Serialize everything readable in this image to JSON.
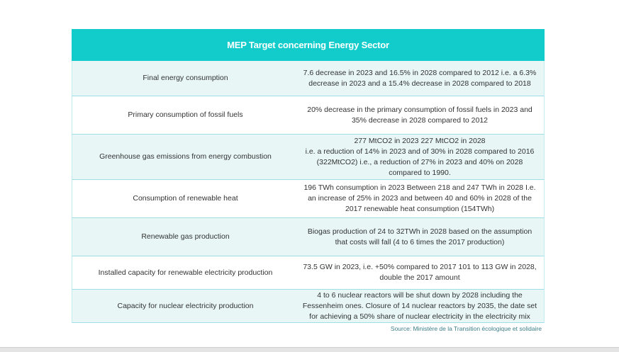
{
  "table": {
    "title": "MEP Target concerning Energy Sector",
    "rows": [
      {
        "label": "Final energy consumption",
        "value_lines": [
          "7.6 decrease in 2023 and 16.5% in 2028 compared to 2012 i.e. a 6.3%",
          "decrease in 2023 and a 15.4% decrease in 2028 compared to 2018"
        ]
      },
      {
        "label": "Primary consumption of fossil fuels",
        "value_lines": [
          "20% decrease in the primary consumption of fossil fuels in 2023 and",
          "35% decrease in 2028 compared to 2012"
        ]
      },
      {
        "label": "Greenhouse gas emissions from energy combustion",
        "value_lines": [
          "277 MtCO2 in 2023 227 MtCO2 in 2028",
          "i.e. a reduction of 14% in 2023 and of 30% in 2028 compared to 2016",
          "(322MtCO2) i.e., a reduction of 27% in 2023 and 40% on 2028",
          "compared to 1990."
        ]
      },
      {
        "label": "Consumption of renewable heat",
        "value_lines": [
          "196 TWh consumption in 2023 Between 218 and 247 TWh in 2028 I.e.",
          "an increase of 25% in 2023 and between 40 and 60% in 2028 of the",
          "2017 renewable heat consumption (154TWh)"
        ]
      },
      {
        "label": "Renewable gas production",
        "value_lines": [
          "Biogas production of 24 to 32TWh in 2028 based on the assumption",
          "that costs will fall (4 to 6 times the 2017 production)"
        ]
      },
      {
        "label": "Installed capacity for renewable electricity production",
        "value_lines": [
          "73.5 GW in 2023, i.e. +50% compared to 2017 101 to 113 GW in 2028,",
          "double the 2017 amount"
        ]
      },
      {
        "label": "Capacity for nuclear electricity production",
        "value_lines": [
          "4 to 6 nuclear reactors will be shut down by 2028 including the",
          "Fessenheim ones. Closure of 14 nuclear reactors by 2035, the date set",
          "for achieving a 50% share of nuclear electricity in the electricity mix"
        ]
      }
    ],
    "source": "Source: Ministère de la Transition écologique et solidaire"
  },
  "colors": {
    "header_bg": "#12cccc",
    "row_tint": "#e8f6f6",
    "row_plain": "#ffffff",
    "border": "#9edfe6",
    "source_text": "#3d7f8a"
  }
}
